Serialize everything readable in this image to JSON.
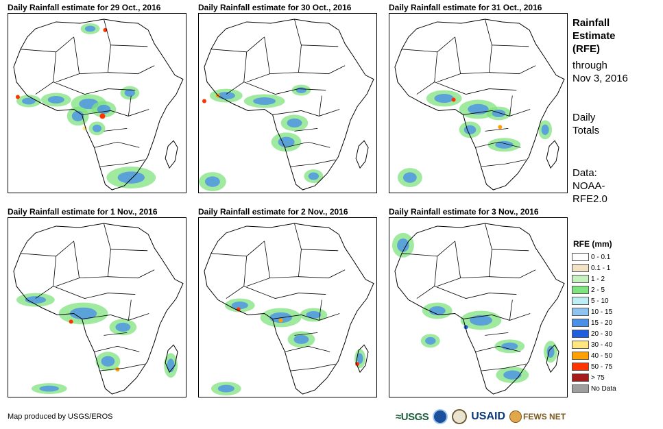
{
  "panels": [
    {
      "title": "Daily Rainfall estimate for 29 Oct., 2016"
    },
    {
      "title": "Daily Rainfall estimate for 30 Oct., 2016"
    },
    {
      "title": "Daily Rainfall estimate for 31 Oct., 2016"
    },
    {
      "title": "Daily Rainfall estimate for 1 Nov., 2016"
    },
    {
      "title": "Daily Rainfall estimate for 2 Nov., 2016"
    },
    {
      "title": "Daily Rainfall estimate for 3 Nov., 2016"
    }
  ],
  "sidebar": {
    "title_lines": [
      "Rainfall",
      "Estimate",
      "(RFE)"
    ],
    "through_lines": [
      "through",
      "Nov 3, 2016"
    ],
    "daily_lines": [
      "Daily",
      "Totals"
    ],
    "data_lines": [
      "Data:",
      "NOAA-",
      "RFE2.0"
    ]
  },
  "legend": {
    "title": "RFE (mm)",
    "items": [
      {
        "label": "0 - 0.1",
        "color": "#ffffff"
      },
      {
        "label": "0.1 - 1",
        "color": "#f2e2c6"
      },
      {
        "label": "1 - 2",
        "color": "#c6f0c0"
      },
      {
        "label": "2 - 5",
        "color": "#7fe37f"
      },
      {
        "label": "5 - 10",
        "color": "#bdeef6"
      },
      {
        "label": "10 - 15",
        "color": "#8fc4f0"
      },
      {
        "label": "15 - 20",
        "color": "#4a90e6"
      },
      {
        "label": "20 - 30",
        "color": "#1f5fde"
      },
      {
        "label": "30 - 40",
        "color": "#ffe680"
      },
      {
        "label": "40 - 50",
        "color": "#ff9f00"
      },
      {
        "label": "50 - 75",
        "color": "#ff3300"
      },
      {
        "label": "> 75",
        "color": "#a61c1c"
      },
      {
        "label": "No Data",
        "color": "#9e9e9e"
      }
    ]
  },
  "footer": {
    "credit": "Map produced by USGS/EROS"
  },
  "logos": {
    "usgs": "≈USGS",
    "usaid": "USAID",
    "fews": "FEWS NET"
  }
}
